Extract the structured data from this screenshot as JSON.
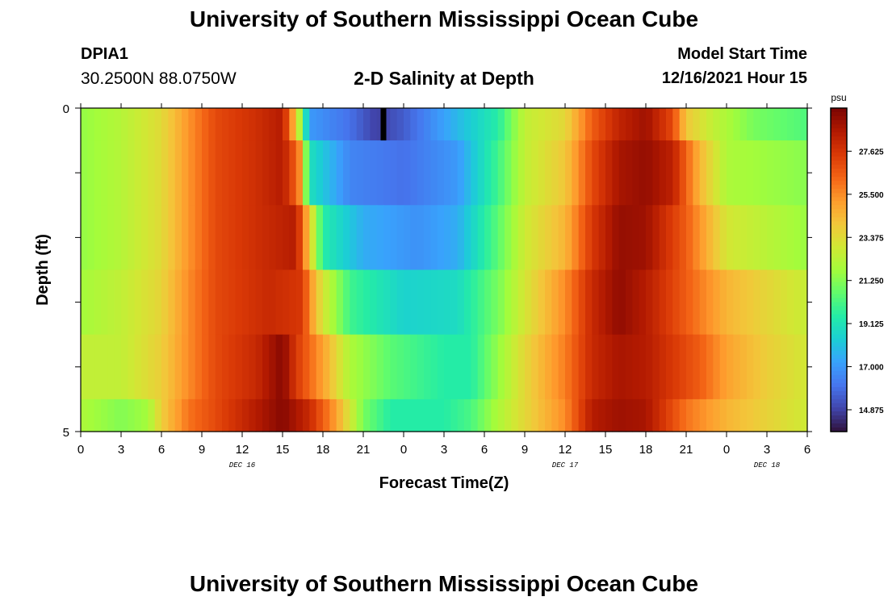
{
  "title": "University of Southern Mississippi Ocean Cube",
  "title_repeat": "University of Southern Mississippi Ocean Cube",
  "station": {
    "id": "DPIA1",
    "coords": "30.2500N  88.0750W"
  },
  "subtitle": "2-D Salinity at Depth",
  "model_start": {
    "label": "Model Start Time",
    "value": "12/16/2021 Hour 15"
  },
  "chart_data": {
    "type": "heatmap",
    "title": "2-D Salinity at Depth",
    "xlabel": "Forecast Time(Z)",
    "ylabel": "Depth (ft)",
    "ylim": [
      0,
      5
    ],
    "y_tick_labels": [
      "0",
      "5"
    ],
    "x_tick_labels": [
      "0",
      "3",
      "6",
      "9",
      "12",
      "15",
      "18",
      "21",
      "0",
      "3",
      "6",
      "9",
      "12",
      "15",
      "18",
      "21",
      "0",
      "3",
      "6"
    ],
    "date_labels": [
      {
        "label": "DEC 16",
        "hour_index": 12
      },
      {
        "label": "DEC 17",
        "hour_index": 36
      },
      {
        "label": "DEC 18",
        "hour_index": 51
      }
    ],
    "hours": 54,
    "depth_rows": [
      "0-1 ft",
      "1-2 ft",
      "2-3 ft",
      "3-4 ft",
      "4-5 ft"
    ],
    "depth_row_bounds": [
      0,
      0.1,
      0.3,
      0.5,
      0.7,
      0.9,
      1.0
    ],
    "colorbar": {
      "unit": "psu",
      "min": 13.8,
      "max": 29.75,
      "tick_labels": [
        "27.625",
        "25.500",
        "23.375",
        "21.250",
        "19.125",
        "17.000",
        "14.875"
      ],
      "colors": [
        "#30123b",
        "#4145ab",
        "#4675ed",
        "#39a2fc",
        "#1bcfd4",
        "#24eca6",
        "#61fc6c",
        "#a4fc3b",
        "#d1e834",
        "#f3c63a",
        "#fe9b2d",
        "#f36315",
        "#d93806",
        "#b11901",
        "#7a0403"
      ]
    },
    "time_hours": [
      0,
      1,
      2,
      3,
      4,
      5,
      6,
      7,
      8,
      9,
      10,
      11,
      12,
      13,
      14,
      15,
      16,
      17,
      18,
      19,
      20,
      21,
      22,
      23,
      24,
      25,
      26,
      27,
      28,
      29,
      30,
      31,
      32,
      33,
      34,
      35,
      36,
      37,
      38,
      39,
      40,
      41,
      42,
      43,
      44,
      45,
      46,
      47,
      48,
      49,
      50,
      51,
      52,
      53,
      54
    ],
    "salinity_knots": [
      {
        "row": 0,
        "knots": [
          [
            0,
            21.5
          ],
          [
            3,
            22.2
          ],
          [
            6,
            23.4
          ],
          [
            8,
            25.3
          ],
          [
            10,
            27.0
          ],
          [
            13,
            27.8
          ],
          [
            15,
            28.5
          ],
          [
            16,
            24.0
          ],
          [
            17,
            17.0
          ],
          [
            20,
            16.0
          ],
          [
            22,
            14.8
          ],
          [
            24,
            15.5
          ],
          [
            27,
            17.2
          ],
          [
            31,
            19.5
          ],
          [
            33,
            22.5
          ],
          [
            36,
            23.5
          ],
          [
            38,
            26.5
          ],
          [
            40,
            28.2
          ],
          [
            42,
            29.0
          ],
          [
            44,
            27.0
          ],
          [
            45,
            24.0
          ],
          [
            47,
            22.5
          ],
          [
            50,
            21.0
          ],
          [
            54,
            20.3
          ]
        ]
      },
      {
        "row": 1,
        "knots": [
          [
            0,
            21.5
          ],
          [
            3,
            22.2
          ],
          [
            6,
            23.4
          ],
          [
            8,
            25.3
          ],
          [
            10,
            27.0
          ],
          [
            13,
            27.8
          ],
          [
            15,
            28.5
          ],
          [
            16.2,
            26.0
          ],
          [
            17,
            19.0
          ],
          [
            20,
            16.5
          ],
          [
            24,
            16.0
          ],
          [
            28,
            17.0
          ],
          [
            31,
            20.0
          ],
          [
            33,
            22.5
          ],
          [
            36,
            24.0
          ],
          [
            38,
            27.0
          ],
          [
            40,
            28.8
          ],
          [
            42,
            29.2
          ],
          [
            44,
            28.3
          ],
          [
            46,
            24.5
          ],
          [
            48,
            22.0
          ],
          [
            54,
            21.3
          ]
        ]
      },
      {
        "row": 2,
        "knots": [
          [
            0,
            21.5
          ],
          [
            3,
            22.2
          ],
          [
            6,
            23.4
          ],
          [
            8,
            25.3
          ],
          [
            10,
            27.0
          ],
          [
            13,
            27.8
          ],
          [
            16,
            28.5
          ],
          [
            17,
            24.0
          ],
          [
            18,
            19.5
          ],
          [
            21,
            17.5
          ],
          [
            25,
            16.8
          ],
          [
            28,
            17.5
          ],
          [
            31,
            20.5
          ],
          [
            33,
            22.8
          ],
          [
            36,
            24.5
          ],
          [
            38,
            27.5
          ],
          [
            40,
            29.2
          ],
          [
            42,
            29.0
          ],
          [
            45,
            26.5
          ],
          [
            48,
            23.0
          ],
          [
            54,
            21.6
          ]
        ]
      },
      {
        "row": 3,
        "knots": [
          [
            0,
            21.8
          ],
          [
            3,
            22.5
          ],
          [
            6,
            23.6
          ],
          [
            8,
            25.5
          ],
          [
            10,
            27.0
          ],
          [
            14,
            28.0
          ],
          [
            16.5,
            27.5
          ],
          [
            17,
            25.5
          ],
          [
            18,
            23.0
          ],
          [
            20,
            20.0
          ],
          [
            24,
            18.5
          ],
          [
            28,
            18.8
          ],
          [
            31,
            21.0
          ],
          [
            33,
            23.0
          ],
          [
            36,
            25.5
          ],
          [
            38,
            28.0
          ],
          [
            40,
            29.3
          ],
          [
            42,
            28.5
          ],
          [
            45,
            26.5
          ],
          [
            48,
            24.5
          ],
          [
            54,
            22.6
          ]
        ]
      },
      {
        "row": 4,
        "knots": [
          [
            0,
            22.5
          ],
          [
            3,
            22.5
          ],
          [
            6,
            23.8
          ],
          [
            8,
            25.5
          ],
          [
            10,
            27.0
          ],
          [
            13,
            28.0
          ],
          [
            15,
            29.5
          ],
          [
            16,
            27.5
          ],
          [
            18,
            25.0
          ],
          [
            20,
            22.0
          ],
          [
            23,
            20.5
          ],
          [
            27,
            19.5
          ],
          [
            29,
            19.5
          ],
          [
            31,
            21.5
          ],
          [
            33,
            23.5
          ],
          [
            36,
            25.8
          ],
          [
            38,
            28.0
          ],
          [
            40,
            28.8
          ],
          [
            42,
            28.5
          ],
          [
            44,
            27.5
          ],
          [
            46,
            26.5
          ],
          [
            48,
            25.0
          ],
          [
            51,
            23.8
          ],
          [
            54,
            22.9
          ]
        ]
      },
      {
        "row": 5,
        "knots": [
          [
            0,
            22.0
          ],
          [
            3,
            21.2
          ],
          [
            5,
            21.8
          ],
          [
            6,
            23.8
          ],
          [
            8,
            26.0
          ],
          [
            11,
            27.5
          ],
          [
            13,
            28.5
          ],
          [
            15,
            29.5
          ],
          [
            17,
            28.0
          ],
          [
            19,
            25.0
          ],
          [
            21,
            21.0
          ],
          [
            23,
            19.5
          ],
          [
            27,
            19.5
          ],
          [
            29,
            20.2
          ],
          [
            31,
            22.0
          ],
          [
            33,
            23.5
          ],
          [
            36,
            25.5
          ],
          [
            38,
            28.5
          ],
          [
            40,
            29.0
          ],
          [
            42,
            28.8
          ],
          [
            45,
            26.0
          ],
          [
            48,
            24.5
          ],
          [
            54,
            22.8
          ]
        ]
      }
    ],
    "marker": {
      "hour": 22.5,
      "row": 0,
      "label": "current time"
    }
  }
}
